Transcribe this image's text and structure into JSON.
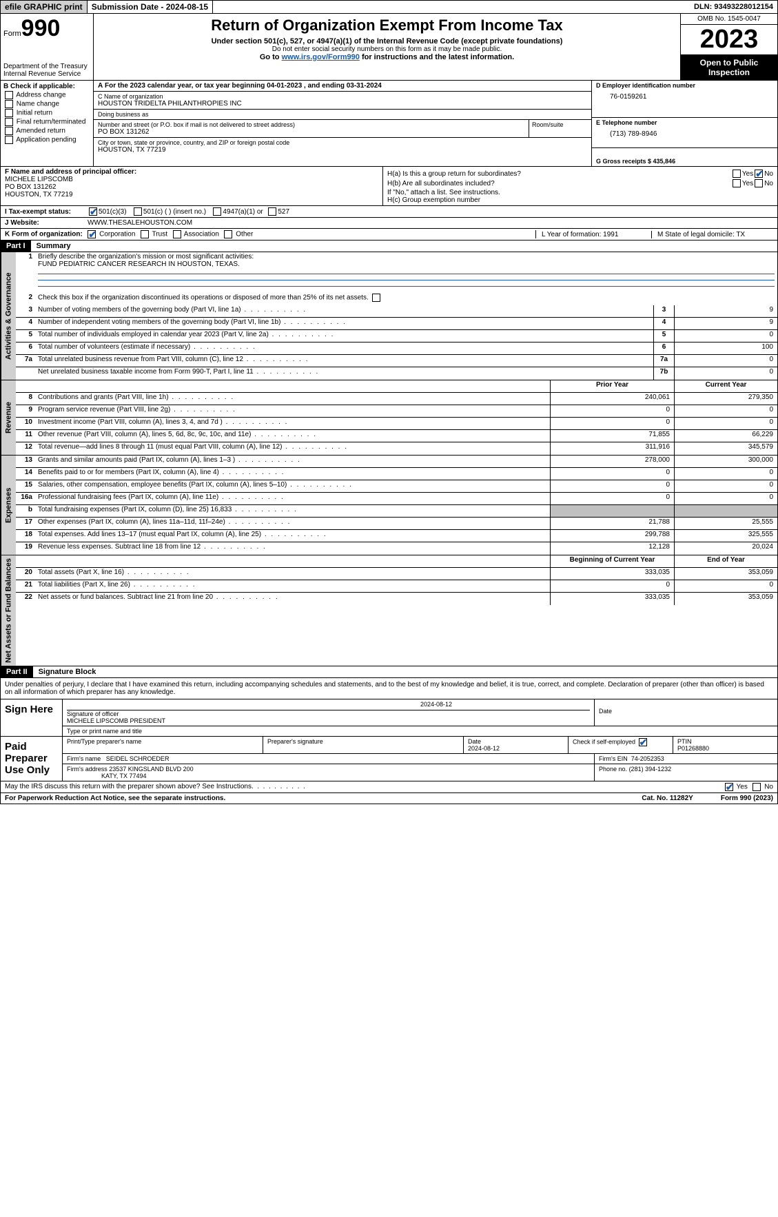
{
  "topbar": {
    "efile": "efile GRAPHIC print",
    "submission": "Submission Date - 2024-08-15",
    "dln": "DLN: 93493228012154"
  },
  "header": {
    "form_label": "Form",
    "form_num": "990",
    "dept": "Department of the Treasury Internal Revenue Service",
    "title": "Return of Organization Exempt From Income Tax",
    "sub": "Under section 501(c), 527, or 4947(a)(1) of the Internal Revenue Code (except private foundations)",
    "ssn": "Do not enter social security numbers on this form as it may be made public.",
    "goto_pre": "Go to ",
    "goto_link": "www.irs.gov/Form990",
    "goto_post": " for instructions and the latest information.",
    "omb": "OMB No. 1545-0047",
    "year": "2023",
    "open": "Open to Public Inspection"
  },
  "a_line": "For the 2023 calendar year, or tax year beginning 04-01-2023   , and ending 03-31-2024",
  "b": {
    "label": "B Check if applicable:",
    "opts": [
      "Address change",
      "Name change",
      "Initial return",
      "Final return/terminated",
      "Amended return",
      "Application pending"
    ]
  },
  "c": {
    "name_lbl": "C Name of organization",
    "name": "HOUSTON TRIDELTA PHILANTHROPIES INC",
    "dba_lbl": "Doing business as",
    "dba": "",
    "street_lbl": "Number and street (or P.O. box if mail is not delivered to street address)",
    "street": "PO BOX 131262",
    "room_lbl": "Room/suite",
    "city_lbl": "City or town, state or province, country, and ZIP or foreign postal code",
    "city": "HOUSTON, TX  77219"
  },
  "d": {
    "lbl": "D Employer identification number",
    "val": "76-0159261"
  },
  "e": {
    "lbl": "E Telephone number",
    "val": "(713) 789-8946"
  },
  "g": {
    "lbl": "G Gross receipts $ 435,846"
  },
  "f": {
    "lbl": "F  Name and address of principal officer:",
    "name": "MICHELE LIPSCOMB",
    "addr1": "PO BOX 131262",
    "addr2": "HOUSTON, TX  77219"
  },
  "h": {
    "a_lbl": "H(a)  Is this a group return for subordinates?",
    "b_lbl": "H(b)  Are all subordinates included?",
    "b_note": "If \"No,\" attach a list. See instructions.",
    "c_lbl": "H(c)  Group exemption number",
    "yes": "Yes",
    "no": "No"
  },
  "i": {
    "lbl": "Tax-exempt status:",
    "opts": [
      "501(c)(3)",
      "501(c) (  ) (insert no.)",
      "4947(a)(1) or",
      "527"
    ]
  },
  "j": {
    "lbl": "Website:",
    "val": "WWW.THESALEHOUSTON.COM"
  },
  "k": {
    "lbl": "K Form of organization:",
    "opts": [
      "Corporation",
      "Trust",
      "Association",
      "Other"
    ]
  },
  "l": "L Year of formation: 1991",
  "m": "M State of legal domicile: TX",
  "part1": {
    "hdr": "Part I",
    "title": "Summary"
  },
  "summary": {
    "l1_lbl": "Briefly describe the organization's mission or most significant activities:",
    "l1_val": "FUND PEDIATRIC CANCER RESEARCH IN HOUSTON, TEXAS.",
    "l2": "Check this box      if the organization discontinued its operations or disposed of more than 25% of its net assets.",
    "rows_gov": [
      {
        "n": "3",
        "d": "Number of voting members of the governing body (Part VI, line 1a)",
        "b": "3",
        "v": "9"
      },
      {
        "n": "4",
        "d": "Number of independent voting members of the governing body (Part VI, line 1b)",
        "b": "4",
        "v": "9"
      },
      {
        "n": "5",
        "d": "Total number of individuals employed in calendar year 2023 (Part V, line 2a)",
        "b": "5",
        "v": "0"
      },
      {
        "n": "6",
        "d": "Total number of volunteers (estimate if necessary)",
        "b": "6",
        "v": "100"
      },
      {
        "n": "7a",
        "d": "Total unrelated business revenue from Part VIII, column (C), line 12",
        "b": "7a",
        "v": "0"
      },
      {
        "n": "",
        "d": "Net unrelated business taxable income from Form 990-T, Part I, line 11",
        "b": "7b",
        "v": "0"
      }
    ],
    "prior_hdr": "Prior Year",
    "current_hdr": "Current Year",
    "rows_rev": [
      {
        "n": "8",
        "d": "Contributions and grants (Part VIII, line 1h)",
        "p": "240,061",
        "c": "279,350"
      },
      {
        "n": "9",
        "d": "Program service revenue (Part VIII, line 2g)",
        "p": "0",
        "c": "0"
      },
      {
        "n": "10",
        "d": "Investment income (Part VIII, column (A), lines 3, 4, and 7d )",
        "p": "0",
        "c": "0"
      },
      {
        "n": "11",
        "d": "Other revenue (Part VIII, column (A), lines 5, 6d, 8c, 9c, 10c, and 11e)",
        "p": "71,855",
        "c": "66,229"
      },
      {
        "n": "12",
        "d": "Total revenue—add lines 8 through 11 (must equal Part VIII, column (A), line 12)",
        "p": "311,916",
        "c": "345,579"
      }
    ],
    "rows_exp": [
      {
        "n": "13",
        "d": "Grants and similar amounts paid (Part IX, column (A), lines 1–3 )",
        "p": "278,000",
        "c": "300,000"
      },
      {
        "n": "14",
        "d": "Benefits paid to or for members (Part IX, column (A), line 4)",
        "p": "0",
        "c": "0"
      },
      {
        "n": "15",
        "d": "Salaries, other compensation, employee benefits (Part IX, column (A), lines 5–10)",
        "p": "0",
        "c": "0"
      },
      {
        "n": "16a",
        "d": "Professional fundraising fees (Part IX, column (A), line 11e)",
        "p": "0",
        "c": "0"
      },
      {
        "n": "b",
        "d": "Total fundraising expenses (Part IX, column (D), line 25) 16,833",
        "p": "",
        "c": "",
        "shaded": true
      },
      {
        "n": "17",
        "d": "Other expenses (Part IX, column (A), lines 11a–11d, 11f–24e)",
        "p": "21,788",
        "c": "25,555"
      },
      {
        "n": "18",
        "d": "Total expenses. Add lines 13–17 (must equal Part IX, column (A), line 25)",
        "p": "299,788",
        "c": "325,555"
      },
      {
        "n": "19",
        "d": "Revenue less expenses. Subtract line 18 from line 12",
        "p": "12,128",
        "c": "20,024"
      }
    ],
    "begin_hdr": "Beginning of Current Year",
    "end_hdr": "End of Year",
    "rows_net": [
      {
        "n": "20",
        "d": "Total assets (Part X, line 16)",
        "p": "333,035",
        "c": "353,059"
      },
      {
        "n": "21",
        "d": "Total liabilities (Part X, line 26)",
        "p": "0",
        "c": "0"
      },
      {
        "n": "22",
        "d": "Net assets or fund balances. Subtract line 21 from line 20",
        "p": "333,035",
        "c": "353,059"
      }
    ],
    "side_gov": "Activities & Governance",
    "side_rev": "Revenue",
    "side_exp": "Expenses",
    "side_net": "Net Assets or Fund Balances"
  },
  "part2": {
    "hdr": "Part II",
    "title": "Signature Block"
  },
  "sig": {
    "declaration": "Under penalties of perjury, I declare that I have examined this return, including accompanying schedules and statements, and to the best of my knowledge and belief, it is true, correct, and complete. Declaration of preparer (other than officer) is based on all information of which preparer has any knowledge.",
    "sign_here": "Sign Here",
    "sig_date": "2024-08-12",
    "sig_officer_lbl": "Signature of officer",
    "officer": "MICHELE LIPSCOMB PRESIDENT",
    "type_lbl": "Type or print name and title",
    "date_lbl": "Date",
    "paid": "Paid Preparer Use Only",
    "prep_name_lbl": "Print/Type preparer's name",
    "prep_sig_lbl": "Preparer's signature",
    "prep_date_lbl": "Date",
    "prep_date": "2024-08-12",
    "self_emp": "Check       if self-employed",
    "ptin_lbl": "PTIN",
    "ptin": "P01268880",
    "firm_name_lbl": "Firm's name",
    "firm_name": "SEIDEL SCHROEDER",
    "firm_ein_lbl": "Firm's EIN",
    "firm_ein": "74-2052353",
    "firm_addr_lbl": "Firm's address",
    "firm_addr1": "23537 KINGSLAND BLVD 200",
    "firm_addr2": "KATY, TX  77494",
    "phone_lbl": "Phone no.",
    "phone": "(281) 394-1232",
    "discuss": "May the IRS discuss this return with the preparer shown above? See Instructions."
  },
  "footer": {
    "paperwork": "For Paperwork Reduction Act Notice, see the separate instructions.",
    "cat": "Cat. No. 11282Y",
    "form": "Form 990 (2023)"
  }
}
